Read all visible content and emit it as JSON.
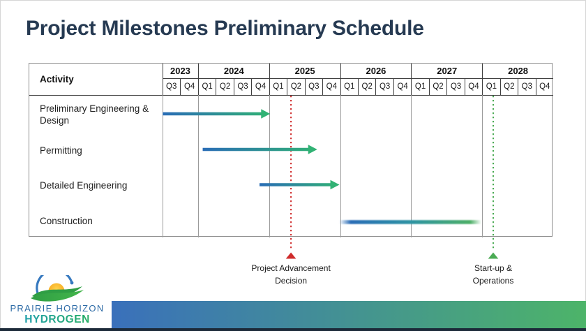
{
  "title": "Project Milestones Preliminary Schedule",
  "table": {
    "activity_header": "Activity",
    "years": [
      {
        "label": "2023",
        "quarters": [
          "Q3",
          "Q4"
        ]
      },
      {
        "label": "2024",
        "quarters": [
          "Q1",
          "Q2",
          "Q3",
          "Q4"
        ]
      },
      {
        "label": "2025",
        "quarters": [
          "Q1",
          "Q2",
          "Q3",
          "Q4"
        ]
      },
      {
        "label": "2026",
        "quarters": [
          "Q1",
          "Q2",
          "Q3",
          "Q4"
        ]
      },
      {
        "label": "2027",
        "quarters": [
          "Q1",
          "Q2",
          "Q3",
          "Q4"
        ]
      },
      {
        "label": "2028",
        "quarters": [
          "Q1",
          "Q2",
          "Q3",
          "Q4"
        ]
      }
    ],
    "activities": [
      "Preliminary Engineering & Design",
      "Permitting",
      "Detailed Engineering",
      "Construction"
    ]
  },
  "chart_data": {
    "type": "bar",
    "subtype": "gantt-timeline",
    "title": "Project Milestones Preliminary Schedule",
    "time_axis": {
      "start": "2023-Q3",
      "end": "2028-Q4",
      "unit": "quarter",
      "total_quarters": 22
    },
    "tasks": [
      {
        "name": "Preliminary Engineering & Design",
        "start": "2023-Q3",
        "end": "2024-Q4",
        "start_idx": 0.05,
        "end_idx": 6.1,
        "style": "gradient-arrow"
      },
      {
        "name": "Permitting",
        "start": "2024-Q1",
        "end": "2025-Q3",
        "start_idx": 2.3,
        "end_idx": 8.75,
        "style": "gradient-arrow"
      },
      {
        "name": "Detailed Engineering",
        "start": "2024-Q4",
        "end": "2025-Q4",
        "start_idx": 5.5,
        "end_idx": 10.0,
        "style": "gradient-arrow"
      },
      {
        "name": "Construction",
        "start": "2026-Q1",
        "end": "2027-Q4",
        "start_idx": 10.0,
        "end_idx": 18.0,
        "style": "faded-gradient-bar"
      }
    ],
    "milestones": [
      {
        "label": "Project Advancement Decision",
        "position": "2025-Q2",
        "idx": 7.27,
        "color": "#cf2b2b"
      },
      {
        "label": "Start-up & Operations",
        "position": "2028-Q1",
        "idx": 18.66,
        "color": "#4bab54"
      }
    ],
    "colors": {
      "task_gradient_start": "#2a6db6",
      "task_gradient_end": "#31b274"
    }
  },
  "annotations": [
    {
      "line1": "Project Advancement",
      "line2": "Decision"
    },
    {
      "line1": "Start-up &",
      "line2": "Operations"
    }
  ],
  "footer": {
    "brand_line1": "PRAIRIE HORIZON",
    "brand_line2": "HYDROGEN"
  },
  "colors": {
    "title": "#263a52",
    "footer_gradient_start": "#3a70bb",
    "footer_gradient_end": "#4db469",
    "footer_strip": "#1c2a39"
  }
}
